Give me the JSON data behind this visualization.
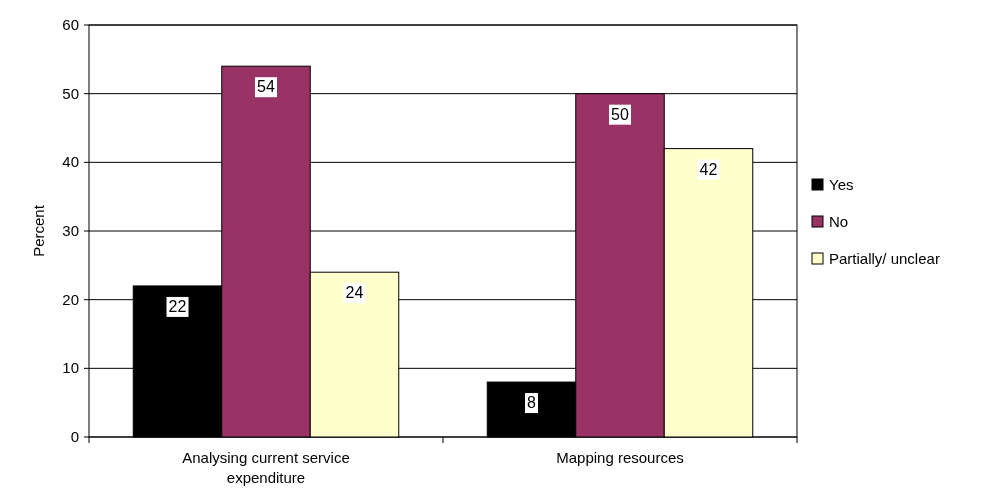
{
  "chart_data": {
    "type": "bar",
    "ylabel": "Percent",
    "categories": [
      "Analysing current service expenditure",
      "Mapping resources"
    ],
    "series": [
      {
        "name": "Yes",
        "color": "#000000",
        "values": [
          22,
          8
        ]
      },
      {
        "name": "No",
        "color": "#993366",
        "values": [
          54,
          50
        ]
      },
      {
        "name": "Partially/ unclear",
        "color": "#ffffcc",
        "values": [
          24,
          42
        ]
      }
    ],
    "ylim": [
      0,
      60
    ],
    "yticks": [
      0,
      10,
      20,
      30,
      40,
      50,
      60
    ],
    "grid": "y",
    "legend": "right",
    "data_labels": true
  }
}
